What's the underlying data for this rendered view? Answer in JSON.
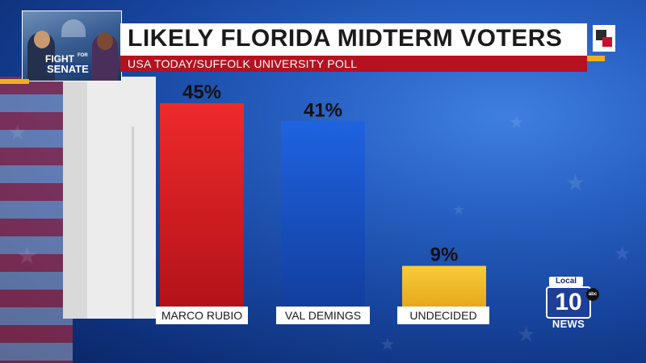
{
  "header": {
    "title": "LIKELY FLORIDA MIDTERM VOTERS",
    "subtitle": "USA TODAY/SUFFOLK UNIVERSITY POLL"
  },
  "thumbnail": {
    "line1": "FIGHT",
    "line1_small": "FOR",
    "line2": "SENATE"
  },
  "logo": {
    "top": "Local",
    "number": "10",
    "network": "abc",
    "bottom": "NEWS"
  },
  "colors": {
    "rubio": "#d81920",
    "demings": "#1a55d0",
    "undecided": "#f4c22c",
    "title_band": "#b5111f",
    "accent": "#f0b020"
  },
  "chart_data": {
    "type": "bar",
    "categories": [
      "MARCO RUBIO",
      "VAL DEMINGS",
      "UNDECIDED"
    ],
    "values": [
      45,
      41,
      9
    ],
    "value_labels": [
      "45%",
      "41%",
      "9%"
    ],
    "title": "LIKELY FLORIDA MIDTERM VOTERS",
    "subtitle": "USA TODAY/SUFFOLK UNIVERSITY POLL",
    "ylim": [
      0,
      60
    ],
    "grid": false
  }
}
